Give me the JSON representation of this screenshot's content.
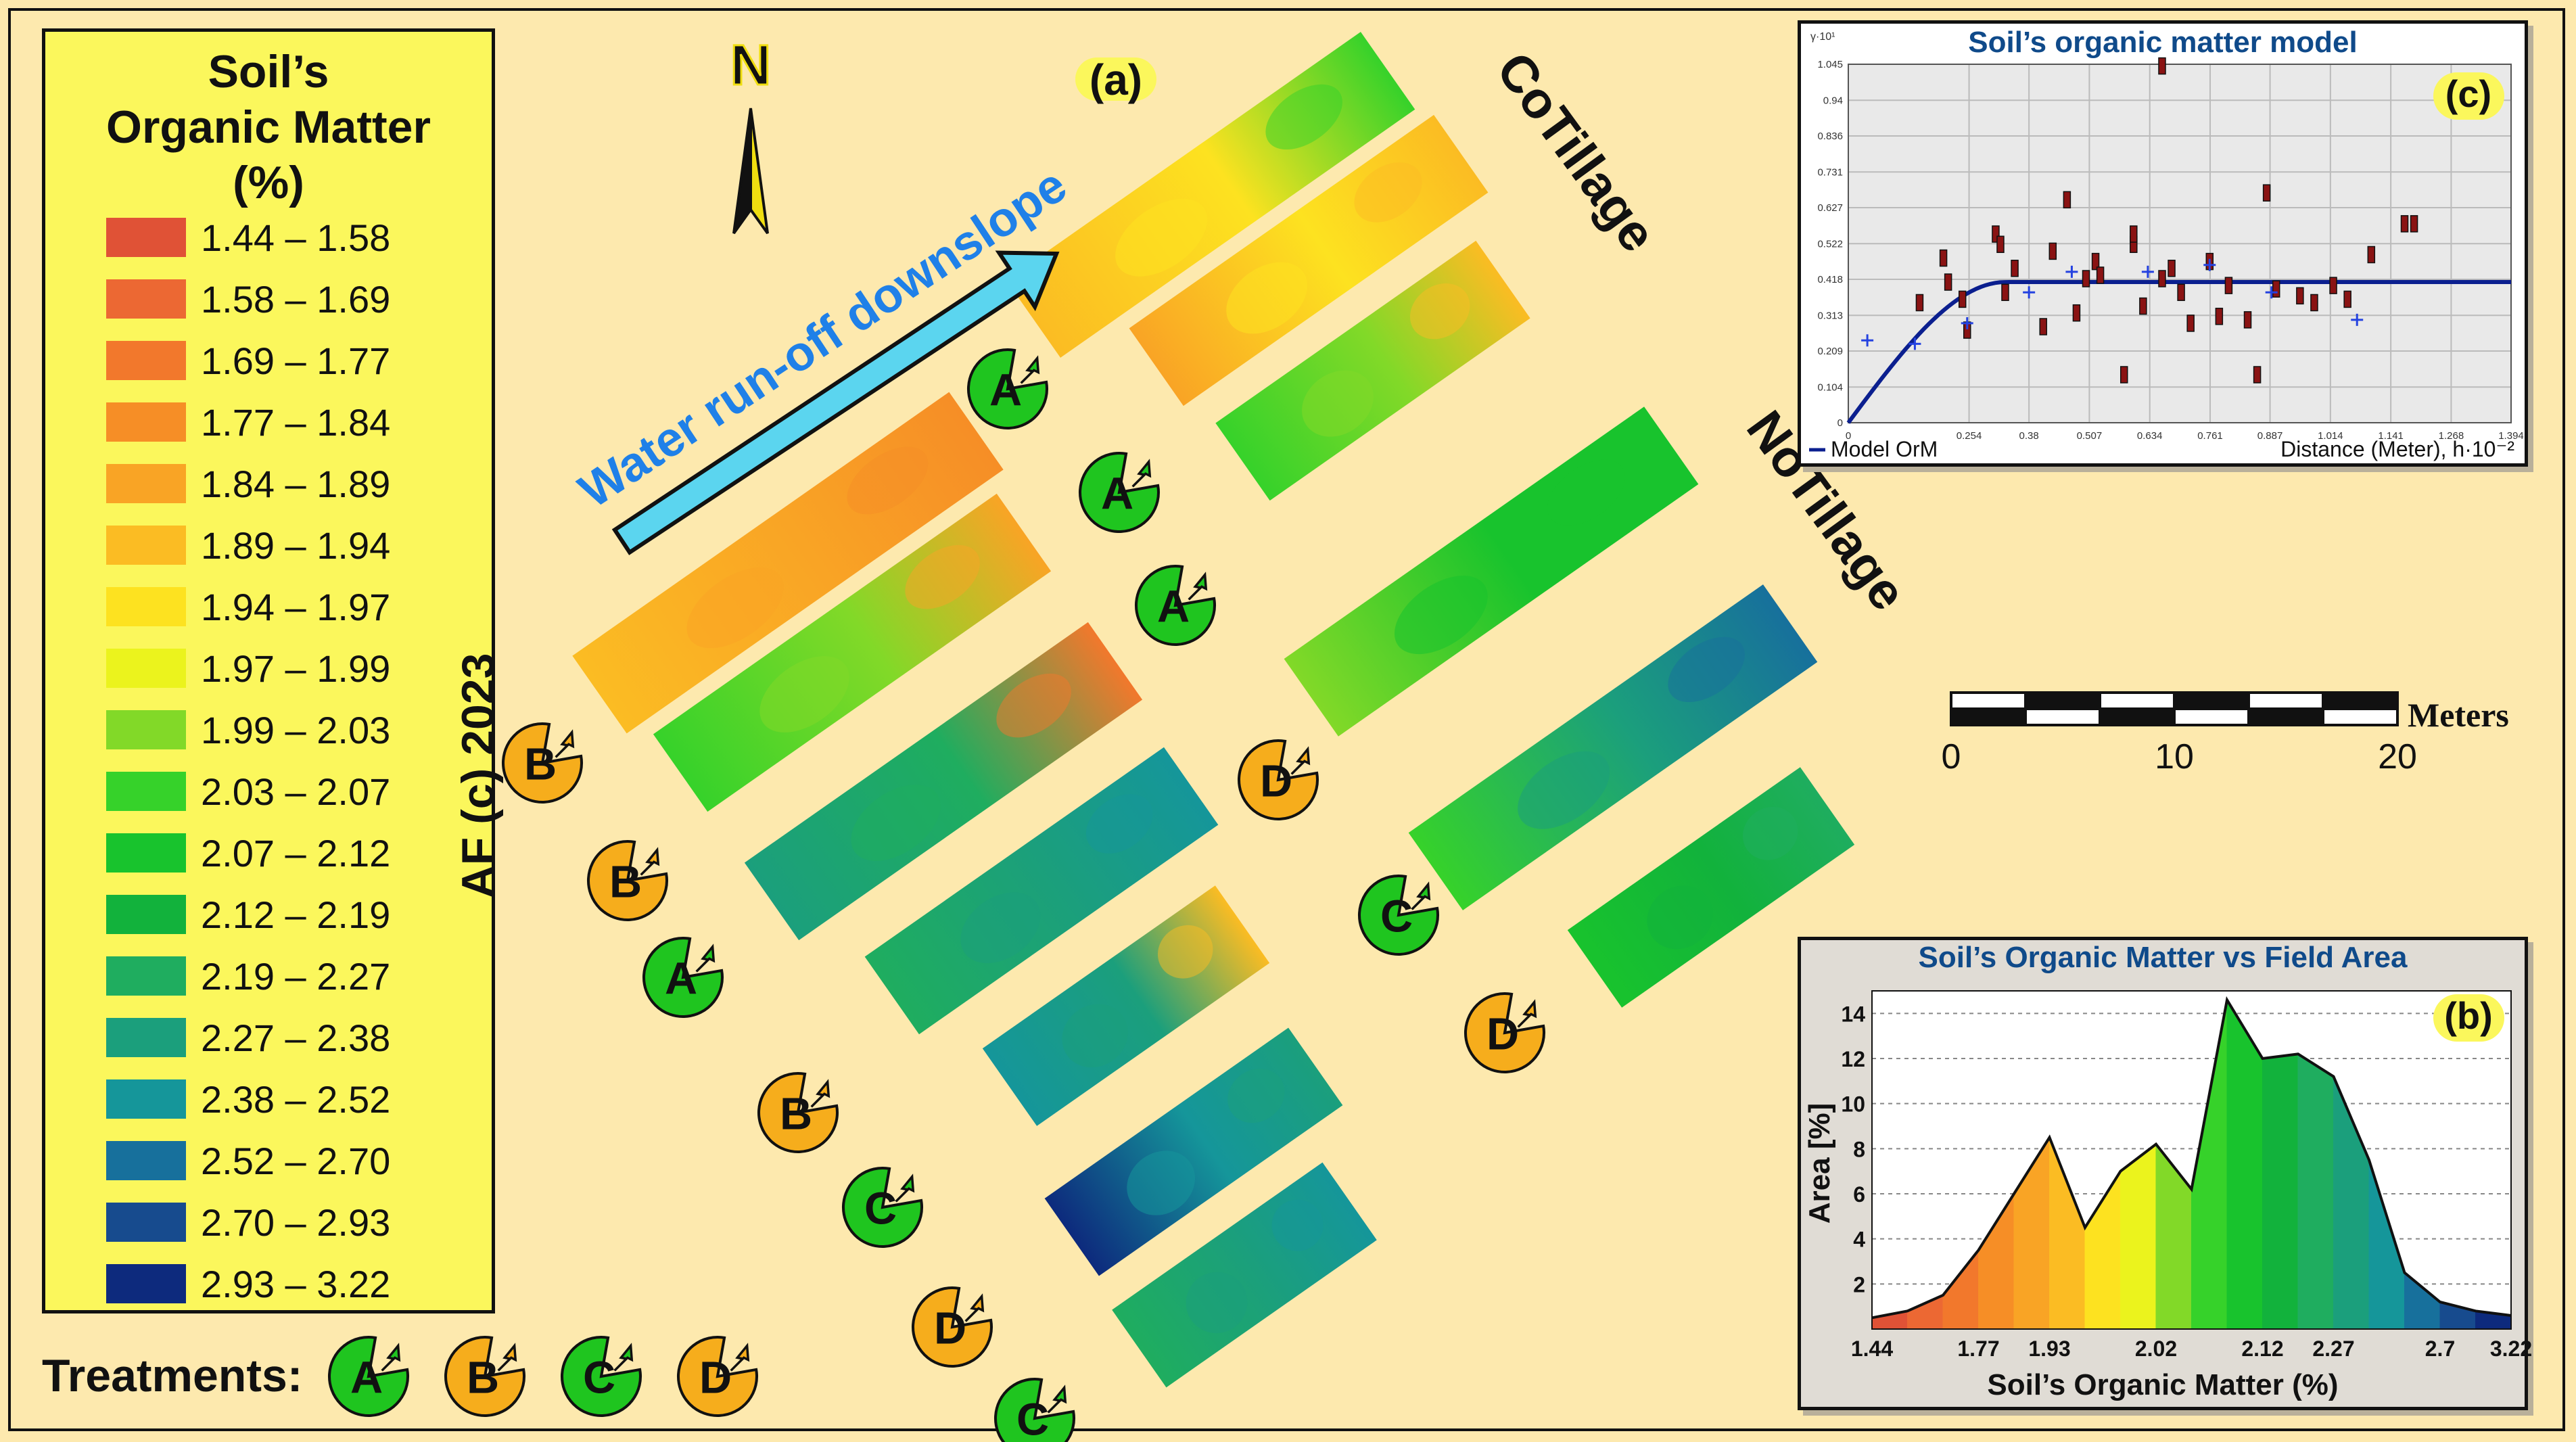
{
  "legend": {
    "title_line1": "Soil’s",
    "title_line2": "Organic Matter",
    "title_line3": "(%)",
    "classes": [
      {
        "label": "1.44 – 1.58",
        "color": "#e05236"
      },
      {
        "label": "1.58 – 1.69",
        "color": "#ec6833"
      },
      {
        "label": "1.69 – 1.77",
        "color": "#f2782c"
      },
      {
        "label": "1.77 – 1.84",
        "color": "#f68e26"
      },
      {
        "label": "1.84 – 1.89",
        "color": "#f9a425"
      },
      {
        "label": "1.89 – 1.94",
        "color": "#fbbc23"
      },
      {
        "label": "1.94 – 1.97",
        "color": "#fde220"
      },
      {
        "label": "1.97 – 1.99",
        "color": "#ebf31d"
      },
      {
        "label": "1.99 – 2.03",
        "color": "#82d928"
      },
      {
        "label": "2.03 – 2.07",
        "color": "#36d22a"
      },
      {
        "label": "2.07 – 2.12",
        "color": "#18c32d"
      },
      {
        "label": "2.12 – 2.19",
        "color": "#12b23c"
      },
      {
        "label": "2.19 – 2.27",
        "color": "#1fad5f"
      },
      {
        "label": "2.27 – 2.38",
        "color": "#1b9f7c"
      },
      {
        "label": "2.38 – 2.52",
        "color": "#15969a"
      },
      {
        "label": "2.52 – 2.70",
        "color": "#17709c"
      },
      {
        "label": "2.70 – 2.93",
        "color": "#174b8e"
      },
      {
        "label": "2.93 – 3.22",
        "color": "#0d2a7d"
      }
    ],
    "credit": "AF (c) 2023"
  },
  "map": {
    "north_label": "N",
    "panel_label": "(a)",
    "arrow_label": "Water run-off downslope",
    "cotillage_label": "CoTillage",
    "notillage_label": "NoTillage",
    "scale_ticks": [
      "0",
      "10",
      "20"
    ],
    "scale_unit": "Meters"
  },
  "treatments": {
    "label": "Treatments:",
    "items": [
      {
        "letter": "A",
        "color": "#1fc51f"
      },
      {
        "letter": "B",
        "color": "#f6ad1c"
      },
      {
        "letter": "C",
        "color": "#1fc51f"
      },
      {
        "letter": "D",
        "color": "#f6ad1c"
      }
    ]
  },
  "strips": [
    {
      "letter": "A",
      "tone": "A",
      "colors": [
        "#fbbc23",
        "#fde220",
        "#36d22a"
      ]
    },
    {
      "letter": "A",
      "tone": "A",
      "colors": [
        "#f9a425",
        "#fde220",
        "#fbbc23"
      ]
    },
    {
      "letter": "A",
      "tone": "A",
      "colors": [
        "#36d22a",
        "#82d928",
        "#fbbc23"
      ]
    },
    {
      "letter": "B",
      "tone": "B",
      "colors": [
        "#fbbc23",
        "#f9a425",
        "#f68e26"
      ]
    },
    {
      "letter": "B",
      "tone": "B",
      "colors": [
        "#36d22a",
        "#82d928",
        "#f9a425"
      ]
    },
    {
      "letter": "A",
      "tone": "A",
      "colors": [
        "#1b9f7c",
        "#1fad5f",
        "#f2782c"
      ]
    },
    {
      "letter": "B",
      "tone": "B",
      "colors": [
        "#1fad5f",
        "#1b9f7c",
        "#15969a"
      ]
    },
    {
      "letter": "C",
      "tone": "C",
      "colors": [
        "#15969a",
        "#1b9f7c",
        "#fbbc23"
      ]
    },
    {
      "letter": "D",
      "tone": "D",
      "colors": [
        "#0d2a7d",
        "#15969a",
        "#1b9f7c"
      ]
    },
    {
      "letter": "C",
      "tone": "C",
      "colors": [
        "#1fad5f",
        "#1b9f7c",
        "#15969a"
      ]
    },
    {
      "letter": "D",
      "tone": "D",
      "colors": [
        "#82d928",
        "#18c32d",
        "#18c32d"
      ]
    },
    {
      "letter": "C",
      "tone": "C",
      "colors": [
        "#36d22a",
        "#1b9f7c",
        "#17709c"
      ]
    },
    {
      "letter": "D",
      "tone": "D",
      "colors": [
        "#18c32d",
        "#12b23c",
        "#1fad5f"
      ]
    }
  ],
  "chart_data": [
    {
      "type": "histogram",
      "panel_label": "(b)",
      "title": "Soil’s Organic Matter vs Field Area",
      "xlabel": "Soil’s Organic Matter (%)",
      "ylabel": "Area [%]",
      "x_ticks": [
        "1.44",
        "1.77",
        "1.93",
        "2.02",
        "2.12",
        "2.27",
        "2.7",
        "3.22"
      ],
      "y_ticks": [
        2,
        4,
        6,
        8,
        10,
        12,
        14
      ],
      "ylim": [
        0,
        15
      ],
      "x": [
        1.44,
        1.58,
        1.69,
        1.77,
        1.84,
        1.89,
        1.94,
        1.97,
        1.99,
        2.03,
        2.07,
        2.12,
        2.19,
        2.27,
        2.38,
        2.52,
        2.7,
        2.93,
        3.22
      ],
      "values": [
        0.5,
        0.8,
        1.5,
        3.5,
        6.0,
        8.5,
        4.5,
        7.0,
        8.2,
        6.2,
        14.6,
        12.0,
        12.2,
        11.2,
        7.5,
        2.5,
        1.2,
        0.8,
        0.6
      ]
    },
    {
      "type": "scatter",
      "panel_label": "(c)",
      "title": "Soil’s organic matter model",
      "y_unit_label": "γ·10¹",
      "legend": "Model OrM",
      "xlabel": "Distance (Meter), h·10⁻²",
      "x_ticks": [
        0,
        0.254,
        0.38,
        0.507,
        0.634,
        0.761,
        0.887,
        1.014,
        1.141,
        1.268,
        1.394
      ],
      "y_ticks": [
        0,
        0.104,
        0.209,
        0.313,
        0.418,
        0.522,
        0.627,
        0.731,
        0.836,
        0.94,
        1.045
      ],
      "xlim": [
        0,
        1.394
      ],
      "ylim": [
        0,
        1.045
      ],
      "model": {
        "nugget": 0.0,
        "sill": 0.41,
        "range": 0.33
      },
      "experimental": [
        {
          "x": 0.04,
          "y": 0.24
        },
        {
          "x": 0.14,
          "y": 0.23
        },
        {
          "x": 0.25,
          "y": 0.29
        },
        {
          "x": 0.38,
          "y": 0.38
        },
        {
          "x": 0.47,
          "y": 0.44
        },
        {
          "x": 0.63,
          "y": 0.44
        },
        {
          "x": 0.76,
          "y": 0.46
        },
        {
          "x": 0.89,
          "y": 0.38
        },
        {
          "x": 1.07,
          "y": 0.3
        }
      ],
      "pairs": [
        {
          "x": 0.15,
          "y": 0.35
        },
        {
          "x": 0.2,
          "y": 0.48
        },
        {
          "x": 0.21,
          "y": 0.41
        },
        {
          "x": 0.24,
          "y": 0.36
        },
        {
          "x": 0.25,
          "y": 0.27
        },
        {
          "x": 0.31,
          "y": 0.55
        },
        {
          "x": 0.32,
          "y": 0.52
        },
        {
          "x": 0.33,
          "y": 0.38
        },
        {
          "x": 0.35,
          "y": 0.45
        },
        {
          "x": 0.41,
          "y": 0.28
        },
        {
          "x": 0.43,
          "y": 0.5
        },
        {
          "x": 0.46,
          "y": 0.65
        },
        {
          "x": 0.48,
          "y": 0.32
        },
        {
          "x": 0.5,
          "y": 0.42
        },
        {
          "x": 0.52,
          "y": 0.47
        },
        {
          "x": 0.53,
          "y": 0.43
        },
        {
          "x": 0.58,
          "y": 0.14
        },
        {
          "x": 0.6,
          "y": 0.52
        },
        {
          "x": 0.62,
          "y": 0.34
        },
        {
          "x": 0.66,
          "y": 0.42
        },
        {
          "x": 0.66,
          "y": 1.04
        },
        {
          "x": 0.68,
          "y": 0.45
        },
        {
          "x": 0.7,
          "y": 0.38
        },
        {
          "x": 0.72,
          "y": 0.29
        },
        {
          "x": 0.76,
          "y": 0.47
        },
        {
          "x": 0.78,
          "y": 0.31
        },
        {
          "x": 0.8,
          "y": 0.4
        },
        {
          "x": 0.84,
          "y": 0.3
        },
        {
          "x": 0.86,
          "y": 0.14
        },
        {
          "x": 0.88,
          "y": 0.67
        },
        {
          "x": 0.9,
          "y": 0.39
        },
        {
          "x": 0.95,
          "y": 0.37
        },
        {
          "x": 0.98,
          "y": 0.35
        },
        {
          "x": 1.02,
          "y": 0.4
        },
        {
          "x": 1.05,
          "y": 0.36
        },
        {
          "x": 1.1,
          "y": 0.49
        },
        {
          "x": 1.17,
          "y": 0.58
        },
        {
          "x": 1.19,
          "y": 0.58
        },
        {
          "x": 0.6,
          "y": 0.55
        }
      ]
    }
  ]
}
